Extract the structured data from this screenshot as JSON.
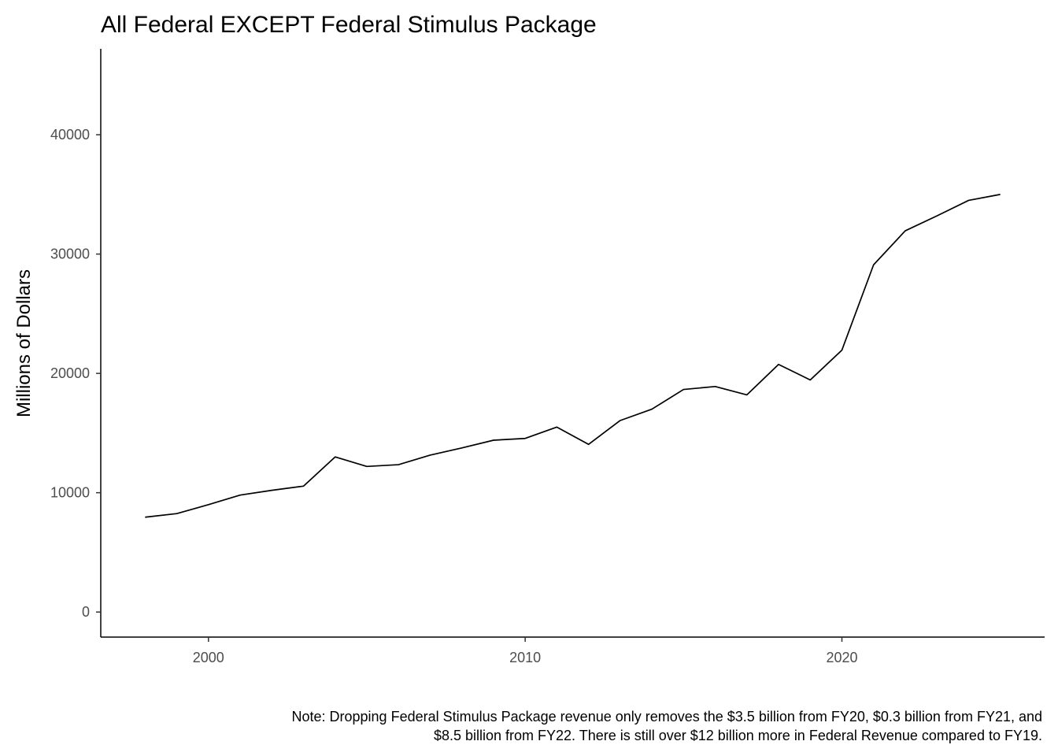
{
  "chart_data": {
    "type": "line",
    "title": "All Federal EXCEPT Federal Stimulus Package",
    "xlabel": "",
    "ylabel": "Millions of Dollars",
    "caption_lines": [
      "Note: Dropping Federal Stimulus Package revenue only removes the $3.5 billion from FY20, $0.3 billion from FY21, and",
      "$8.5 billion from FY22. There is still over $12 billion more in Federal Revenue compared to FY19."
    ],
    "x_ticks": [
      2000,
      2010,
      2020
    ],
    "y_ticks": [
      0,
      10000,
      20000,
      30000,
      40000
    ],
    "xlim": [
      1996.6,
      2026.4
    ],
    "ylim": [
      -2100,
      47200
    ],
    "grid": false,
    "series": [
      {
        "color": "#000000",
        "x": [
          1998,
          1999,
          2000,
          2001,
          2002,
          2003,
          2004,
          2005,
          2006,
          2007,
          2008,
          2009,
          2010,
          2011,
          2012,
          2013,
          2014,
          2015,
          2016,
          2017,
          2018,
          2019,
          2020,
          2021,
          2022,
          2023,
          2024,
          2025
        ],
        "y": [
          7950,
          8250,
          9000,
          9800,
          10200,
          10550,
          13000,
          12200,
          12350,
          13150,
          13750,
          14400,
          14550,
          15500,
          14050,
          16050,
          17000,
          18650,
          18900,
          18200,
          20750,
          19450,
          21950,
          29100,
          31950,
          33200,
          34500,
          35000
        ]
      }
    ]
  }
}
